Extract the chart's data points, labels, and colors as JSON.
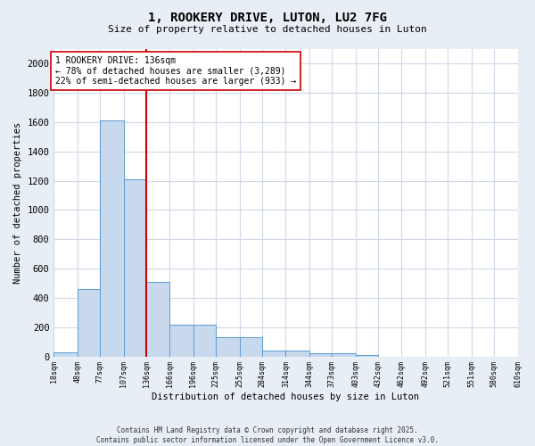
{
  "title1": "1, ROOKERY DRIVE, LUTON, LU2 7FG",
  "title2": "Size of property relative to detached houses in Luton",
  "xlabel": "Distribution of detached houses by size in Luton",
  "ylabel": "Number of detached properties",
  "bar_edges": [
    18,
    48,
    77,
    107,
    136,
    166,
    196,
    225,
    255,
    284,
    314,
    344,
    373,
    403,
    432,
    462,
    492,
    521,
    551,
    580,
    610
  ],
  "bar_heights": [
    30,
    460,
    1610,
    1210,
    510,
    215,
    215,
    130,
    130,
    40,
    40,
    20,
    20,
    10,
    0,
    0,
    0,
    0,
    0,
    0
  ],
  "bar_color": "#c8d9ed",
  "bar_edge_color": "#5b9bd5",
  "vline_x": 136,
  "vline_color": "#cc0000",
  "ylim": [
    0,
    2100
  ],
  "yticks": [
    0,
    200,
    400,
    600,
    800,
    1000,
    1200,
    1400,
    1600,
    1800,
    2000
  ],
  "annotation_text": "1 ROOKERY DRIVE: 136sqm\n← 78% of detached houses are smaller (3,289)\n22% of semi-detached houses are larger (933) →",
  "annotation_box_facecolor": "#ffffff",
  "annotation_box_edgecolor": "#cc0000",
  "footer1": "Contains HM Land Registry data © Crown copyright and database right 2025.",
  "footer2": "Contains public sector information licensed under the Open Government Licence v3.0.",
  "tick_labels": [
    "18sqm",
    "48sqm",
    "77sqm",
    "107sqm",
    "136sqm",
    "166sqm",
    "196sqm",
    "225sqm",
    "255sqm",
    "284sqm",
    "314sqm",
    "344sqm",
    "373sqm",
    "403sqm",
    "432sqm",
    "462sqm",
    "492sqm",
    "521sqm",
    "551sqm",
    "580sqm",
    "610sqm"
  ],
  "fig_background": "#e8eef5",
  "plot_background": "#ffffff",
  "grid_color": "#d0d8e8"
}
